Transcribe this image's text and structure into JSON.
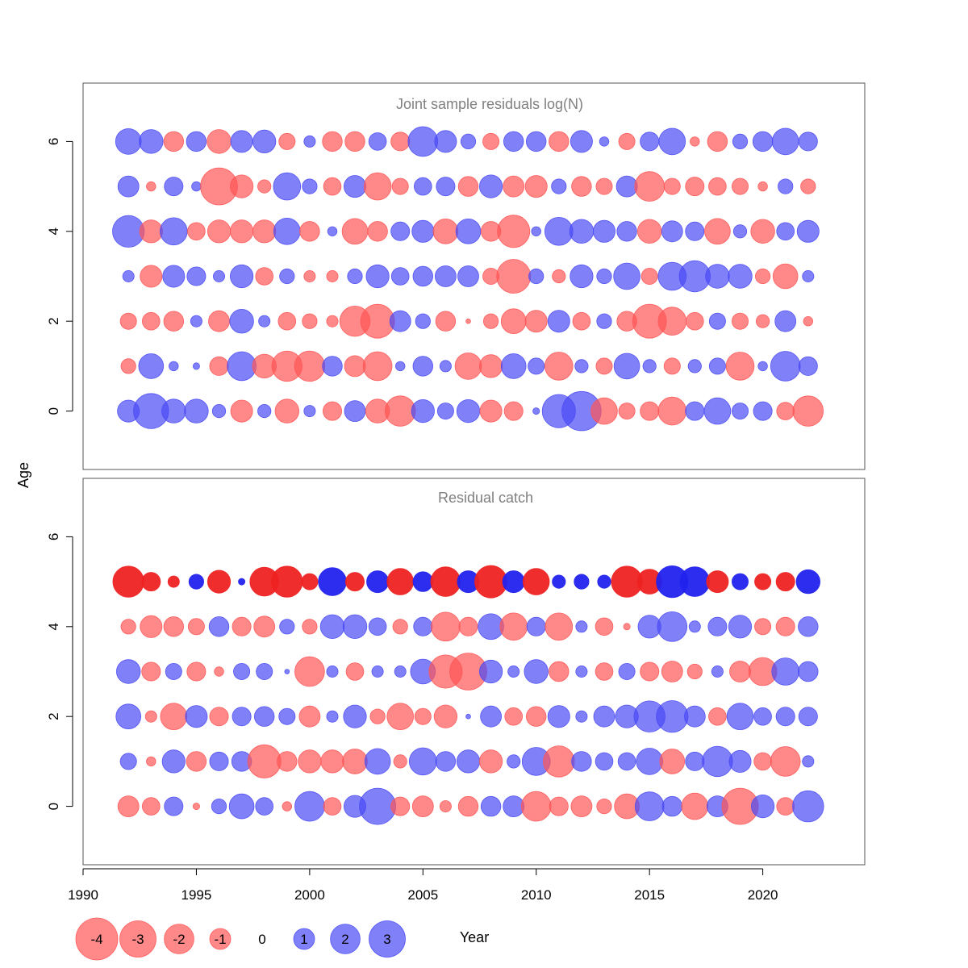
{
  "chart_data": {
    "type": "bubble",
    "xlabel": "Year",
    "ylabel": "Age",
    "x_axis": {
      "range": [
        1990,
        2024.5
      ],
      "ticks": [
        1990,
        1995,
        2000,
        2005,
        2010,
        2015,
        2020
      ]
    },
    "y_axis": {
      "range": [
        -1.3,
        7.3
      ],
      "ticks": [
        0,
        2,
        4,
        6
      ]
    },
    "years": [
      1992,
      1993,
      1994,
      1995,
      1996,
      1997,
      1998,
      1999,
      2000,
      2001,
      2002,
      2003,
      2004,
      2005,
      2006,
      2007,
      2008,
      2009,
      2010,
      2011,
      2012,
      2013,
      2014,
      2015,
      2016,
      2017,
      2018,
      2019,
      2020,
      2021,
      2022
    ],
    "colors": {
      "positive": "#4a4af5",
      "negative": "#ff5555",
      "positive_strong": "#2222ee",
      "negative_strong": "#ee2222"
    },
    "panels": [
      {
        "title": "Joint sample residuals log(N)",
        "ages": [
          0,
          1,
          2,
          3,
          4,
          5,
          6
        ],
        "residuals": [
          [
            1.1,
            2.8,
            1.3,
            1.3,
            0.4,
            -1.1,
            0.4,
            -1.3,
            0.3,
            -0.8,
            1.0,
            -1.3,
            -2.1,
            1.2,
            0.6,
            1.2,
            -1.1,
            -0.8,
            0.1,
            2.5,
            3.5,
            -1.6,
            -0.6,
            -0.8,
            -1.8,
            0.8,
            1.6,
            0.6,
            0.8,
            -0.7,
            -2.1
          ],
          [
            -0.5,
            1.4,
            0.2,
            0.1,
            -0.8,
            1.9,
            -1.3,
            -2.1,
            -2.1,
            0.9,
            -1.0,
            -1.9,
            0.2,
            0.9,
            0.3,
            -1.6,
            -1.2,
            1.4,
            0.6,
            -1.8,
            0.4,
            -0.6,
            1.5,
            0.4,
            -0.6,
            0.4,
            0.6,
            -1.8,
            0.2,
            2.0,
            0.8
          ],
          [
            -0.6,
            -0.7,
            -0.9,
            0.3,
            -1.0,
            1.3,
            0.3,
            -0.7,
            -0.5,
            -0.3,
            -2.1,
            -2.6,
            1.0,
            0.5,
            -0.9,
            -0.05,
            -0.5,
            -1.4,
            -1.1,
            1.1,
            -0.7,
            0.5,
            -0.9,
            -2.6,
            -1.8,
            -0.7,
            0.6,
            -0.6,
            -0.4,
            1.0,
            -0.2
          ],
          [
            0.3,
            -1.1,
            1.1,
            0.8,
            0.3,
            1.2,
            -0.7,
            0.5,
            -0.3,
            -0.3,
            0.5,
            1.2,
            0.7,
            0.9,
            1.0,
            1.0,
            -0.6,
            -2.6,
            0.5,
            -0.4,
            1.2,
            0.5,
            1.6,
            -0.6,
            1.8,
            2.2,
            1.3,
            1.3,
            -0.5,
            -1.4,
            0.3
          ],
          [
            2.3,
            -1.2,
            1.7,
            -0.7,
            -1.2,
            -1.2,
            -1.2,
            1.6,
            -0.9,
            0.2,
            -1.5,
            -0.9,
            0.8,
            1.1,
            -1.4,
            1.4,
            -0.9,
            -2.4,
            0.2,
            1.8,
            1.3,
            1.1,
            0.9,
            -1.3,
            1.0,
            0.8,
            -1.5,
            0.4,
            -1.3,
            0.7,
            1.1
          ],
          [
            1.0,
            -0.2,
            0.8,
            0.2,
            -3.1,
            -1.2,
            -0.4,
            1.7,
            0.5,
            -0.7,
            1.1,
            -1.7,
            -0.6,
            0.7,
            0.8,
            -0.9,
            1.2,
            -1.0,
            -1.1,
            0.5,
            -0.9,
            -0.6,
            1.0,
            -2.0,
            -0.6,
            -0.8,
            -0.7,
            -0.6,
            -0.2,
            0.5,
            -0.5
          ],
          [
            1.5,
            1.3,
            -0.9,
            0.9,
            -1.3,
            1.1,
            1.2,
            -0.6,
            0.3,
            -0.9,
            -0.9,
            0.7,
            -0.8,
            2.0,
            1.1,
            0.5,
            -0.6,
            0.9,
            0.9,
            -0.9,
            1.1,
            0.2,
            -0.6,
            0.8,
            1.6,
            -0.2,
            -0.9,
            0.5,
            0.9,
            1.6,
            0.8
          ]
        ]
      },
      {
        "title": "Residual catch",
        "ages": [
          0,
          1,
          2,
          3,
          4,
          5
        ],
        "strong_ages": [
          5
        ],
        "residuals": [
          [
            -1.0,
            -0.7,
            0.8,
            -0.1,
            0.5,
            1.4,
            0.7,
            -0.2,
            2.0,
            -0.7,
            1.1,
            3.0,
            -0.8,
            -1.0,
            -0.3,
            -0.9,
            0.9,
            1.0,
            -2.0,
            -0.8,
            -1.0,
            -0.5,
            -1.4,
            1.9,
            0.9,
            -1.6,
            1.0,
            -3.0,
            1.2,
            -0.7,
            2.2
          ],
          [
            0.6,
            -0.2,
            1.2,
            -0.9,
            0.8,
            0.9,
            -2.5,
            -0.9,
            -1.2,
            -1.2,
            -1.4,
            1.5,
            -0.4,
            1.7,
            0.9,
            1.2,
            -1.2,
            0.4,
            1.8,
            -2.2,
            0.9,
            0.7,
            0.7,
            1.6,
            -1.4,
            0.8,
            2.1,
            1.1,
            -0.7,
            -2.0,
            0.3
          ],
          [
            1.4,
            -0.3,
            -1.6,
            1.1,
            -0.8,
            0.8,
            0.9,
            0.6,
            -1.0,
            0.3,
            1.2,
            -0.5,
            -1.6,
            -0.6,
            -1.2,
            0.05,
            1.0,
            -0.7,
            -0.9,
            1.1,
            0.3,
            1.0,
            1.2,
            2.2,
            2.3,
            1.0,
            -0.7,
            1.6,
            0.7,
            0.8,
            0.8
          ],
          [
            1.3,
            -0.8,
            0.6,
            -0.8,
            -0.2,
            0.6,
            0.6,
            0.05,
            -2.0,
            0.3,
            -0.7,
            0.3,
            0.3,
            1.4,
            -2.5,
            -3.1,
            1.2,
            0.3,
            1.3,
            -0.9,
            0.3,
            -0.7,
            0.6,
            -0.8,
            -1.0,
            -0.5,
            0.3,
            -1.0,
            -1.8,
            1.7,
            0.9
          ],
          [
            -0.5,
            -1.1,
            -0.9,
            -0.6,
            0.9,
            -0.8,
            -1.0,
            0.5,
            -0.5,
            1.3,
            1.3,
            0.7,
            -0.5,
            0.8,
            -1.9,
            -0.8,
            1.5,
            -1.7,
            0.8,
            -1.7,
            0.3,
            -0.7,
            -0.1,
            1.2,
            2.0,
            0.3,
            0.8,
            1.2,
            -0.6,
            -0.8,
            0.9
          ],
          [
            -2.2,
            -0.8,
            -0.3,
            0.5,
            -1.2,
            0.1,
            -1.9,
            -2.2,
            -0.6,
            1.8,
            -0.8,
            1.1,
            -1.6,
            0.9,
            -2.0,
            1.1,
            -2.4,
            1.1,
            -1.6,
            0.4,
            0.5,
            0.4,
            -2.2,
            -1.4,
            2.3,
            2.0,
            -1.1,
            0.6,
            -0.6,
            -0.8,
            1.3
          ]
        ]
      }
    ],
    "legend": [
      {
        "value": -4,
        "label": "-4"
      },
      {
        "value": -3,
        "label": "-3"
      },
      {
        "value": -2,
        "label": "-2"
      },
      {
        "value": -1,
        "label": "-1"
      },
      {
        "value": 0,
        "label": "0"
      },
      {
        "value": 1,
        "label": "1"
      },
      {
        "value": 2,
        "label": "2"
      },
      {
        "value": 3,
        "label": "3"
      }
    ],
    "legend_placement": "bottom-left"
  }
}
